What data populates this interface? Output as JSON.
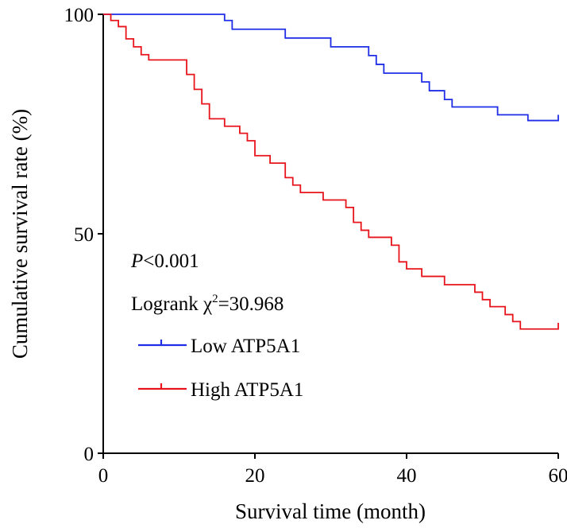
{
  "chart_data": {
    "type": "line",
    "subtype": "kaplan-meier step",
    "title": "",
    "xlabel": "Survival time (month)",
    "ylabel": "Cumulative survival rate (%)",
    "xlim": [
      0,
      60
    ],
    "ylim": [
      0,
      100
    ],
    "xticks": [
      0,
      20,
      40,
      60
    ],
    "yticks": [
      0,
      50,
      100
    ],
    "xtick_labels": [
      "0",
      "20",
      "40",
      "60"
    ],
    "ytick_labels": [
      "0",
      "50",
      "100"
    ],
    "grid": false,
    "annotations": {
      "p_label": "P",
      "p_value": "<0.001",
      "logrank_prefix": "Logrank ",
      "chi": "χ",
      "chi_exp": "2",
      "logrank_value": "=30.968"
    },
    "legend": {
      "placement": "center-left",
      "entries": [
        {
          "name": "Low ATP5A1",
          "color": "#1f2ee6"
        },
        {
          "name": "High ATP5A1",
          "color": "#e8141c"
        }
      ]
    },
    "series": [
      {
        "name": "Low ATP5A1",
        "color": "#1f2ee6",
        "points": [
          [
            0,
            100
          ],
          [
            16,
            100
          ],
          [
            16,
            98.6
          ],
          [
            17,
            98.6
          ],
          [
            17,
            96.6
          ],
          [
            24,
            96.6
          ],
          [
            24,
            94.6
          ],
          [
            30,
            94.6
          ],
          [
            30,
            92.6
          ],
          [
            35,
            92.6
          ],
          [
            35,
            90.6
          ],
          [
            36,
            90.6
          ],
          [
            36,
            88.6
          ],
          [
            37,
            88.6
          ],
          [
            37,
            86.6
          ],
          [
            42,
            86.6
          ],
          [
            42,
            84.6
          ],
          [
            43,
            84.6
          ],
          [
            43,
            82.6
          ],
          [
            45,
            82.6
          ],
          [
            45,
            80.6
          ],
          [
            46,
            80.6
          ],
          [
            46,
            78.9
          ],
          [
            52,
            78.9
          ],
          [
            52,
            77.1
          ],
          [
            56,
            77.1
          ],
          [
            56,
            75.8
          ],
          [
            60,
            75.8
          ],
          [
            60,
            77.1
          ]
        ],
        "censor_times": [
          60
        ]
      },
      {
        "name": "High ATP5A1",
        "color": "#e8141c",
        "points": [
          [
            0,
            100
          ],
          [
            1,
            100
          ],
          [
            1,
            98.6
          ],
          [
            2,
            98.6
          ],
          [
            2,
            97.2
          ],
          [
            3,
            97.2
          ],
          [
            3,
            94.4
          ],
          [
            4,
            94.4
          ],
          [
            4,
            92.6
          ],
          [
            5,
            92.6
          ],
          [
            5,
            90.8
          ],
          [
            6,
            90.8
          ],
          [
            6,
            89.6
          ],
          [
            11,
            89.6
          ],
          [
            11,
            86.3
          ],
          [
            12,
            86.3
          ],
          [
            12,
            82.9
          ],
          [
            13,
            82.9
          ],
          [
            13,
            79.6
          ],
          [
            14,
            79.6
          ],
          [
            14,
            76.2
          ],
          [
            16,
            76.2
          ],
          [
            16,
            74.5
          ],
          [
            18,
            74.5
          ],
          [
            18,
            72.9
          ],
          [
            19,
            72.9
          ],
          [
            19,
            71.2
          ],
          [
            20,
            71.2
          ],
          [
            20,
            67.8
          ],
          [
            22,
            67.8
          ],
          [
            22,
            66.1
          ],
          [
            24,
            66.1
          ],
          [
            24,
            62.8
          ],
          [
            25,
            62.8
          ],
          [
            25,
            61.1
          ],
          [
            26,
            61.1
          ],
          [
            26,
            59.4
          ],
          [
            29,
            59.4
          ],
          [
            29,
            57.7
          ],
          [
            32,
            57.7
          ],
          [
            32,
            56.0
          ],
          [
            33,
            56.0
          ],
          [
            33,
            52.6
          ],
          [
            34,
            52.6
          ],
          [
            34,
            50.8
          ],
          [
            35,
            50.8
          ],
          [
            35,
            49.2
          ],
          [
            38,
            49.2
          ],
          [
            38,
            47.4
          ],
          [
            39,
            47.4
          ],
          [
            39,
            43.6
          ],
          [
            40,
            43.6
          ],
          [
            40,
            42.0
          ],
          [
            42,
            42.0
          ],
          [
            42,
            40.3
          ],
          [
            45,
            40.3
          ],
          [
            45,
            38.4
          ],
          [
            49,
            38.4
          ],
          [
            49,
            36.7
          ],
          [
            50,
            36.7
          ],
          [
            50,
            35.0
          ],
          [
            51,
            35.0
          ],
          [
            51,
            33.4
          ],
          [
            53,
            33.4
          ],
          [
            53,
            31.6
          ],
          [
            54,
            31.6
          ],
          [
            54,
            30.0
          ],
          [
            55,
            30.0
          ],
          [
            55,
            28.3
          ],
          [
            60,
            28.3
          ],
          [
            60,
            29.7
          ]
        ],
        "censor_times": [
          60
        ]
      }
    ]
  }
}
